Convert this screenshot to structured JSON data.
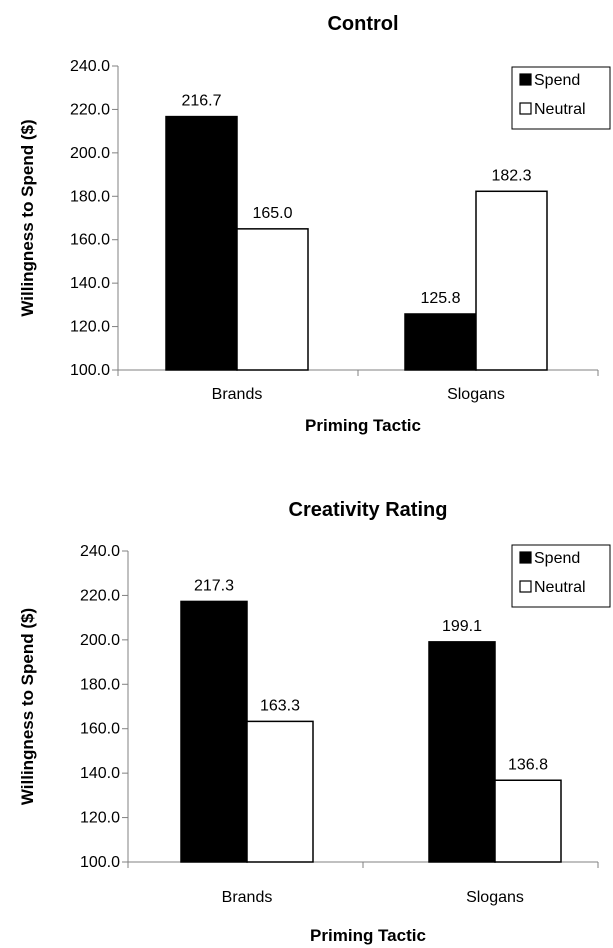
{
  "chart_data": [
    {
      "type": "bar",
      "title": "Control",
      "xlabel": "Priming Tactic",
      "ylabel": "Willingness to Spend ($)",
      "ylim": [
        100,
        240
      ],
      "yticks": [
        "100.0",
        "120.0",
        "140.0",
        "160.0",
        "180.0",
        "200.0",
        "220.0",
        "240.0"
      ],
      "categories": [
        "Brands",
        "Slogans"
      ],
      "series": [
        {
          "name": "Spend",
          "color": "#000000",
          "values": [
            216.7,
            125.8
          ],
          "labels": [
            "216.7",
            "125.8"
          ]
        },
        {
          "name": "Neutral",
          "color": "#ffffff",
          "values": [
            165.0,
            182.3
          ],
          "labels": [
            "165.0",
            "182.3"
          ]
        }
      ],
      "legend": "top-right",
      "grid": false
    },
    {
      "type": "bar",
      "title": "Creativity Rating",
      "xlabel": "Priming Tactic",
      "ylabel": "Willingness to Spend ($)",
      "ylim": [
        100,
        240
      ],
      "yticks": [
        "100.0",
        "120.0",
        "140.0",
        "160.0",
        "180.0",
        "200.0",
        "220.0",
        "240.0"
      ],
      "categories": [
        "Brands",
        "Slogans"
      ],
      "series": [
        {
          "name": "Spend",
          "color": "#000000",
          "values": [
            217.3,
            199.1
          ],
          "labels": [
            "217.3",
            "199.1"
          ]
        },
        {
          "name": "Neutral",
          "color": "#ffffff",
          "values": [
            163.3,
            136.8
          ],
          "labels": [
            "163.3",
            "136.8"
          ]
        }
      ],
      "legend": "top-right",
      "grid": false
    }
  ]
}
